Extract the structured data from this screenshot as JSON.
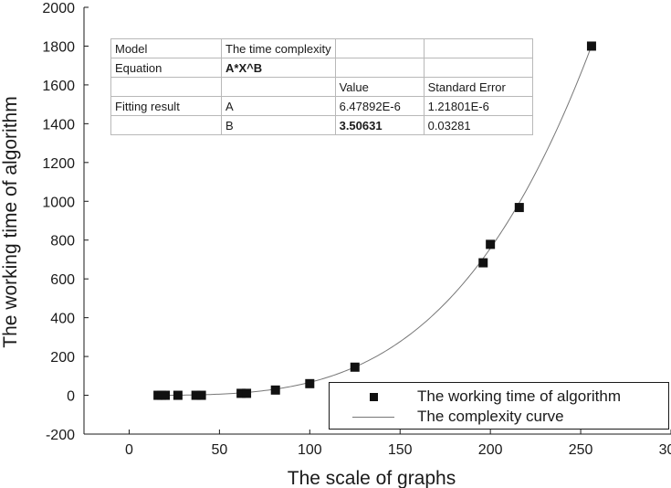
{
  "chart_data": {
    "type": "scatter",
    "xlabel": "The scale of graphs",
    "ylabel": "The working time of algorithm",
    "xlim": [
      -25,
      300
    ],
    "ylim": [
      -200,
      2000
    ],
    "x_ticks": [
      0,
      50,
      100,
      150,
      200,
      250,
      300
    ],
    "y_ticks": [
      -200,
      0,
      200,
      400,
      600,
      800,
      1000,
      1200,
      1400,
      1600,
      1800,
      2000
    ],
    "grid": false,
    "legend_position": "bottom-right",
    "series": [
      {
        "name": "The working time of algorithm",
        "kind": "scatter",
        "marker": "square",
        "color": "#111111",
        "points": [
          {
            "x": 16,
            "y": 0
          },
          {
            "x": 18,
            "y": 0
          },
          {
            "x": 20,
            "y": 0
          },
          {
            "x": 27,
            "y": 0
          },
          {
            "x": 37,
            "y": 0
          },
          {
            "x": 40,
            "y": 0
          },
          {
            "x": 62,
            "y": 10
          },
          {
            "x": 65,
            "y": 10
          },
          {
            "x": 81,
            "y": 27
          },
          {
            "x": 100,
            "y": 60
          },
          {
            "x": 125,
            "y": 145
          },
          {
            "x": 196,
            "y": 683
          },
          {
            "x": 200,
            "y": 778
          },
          {
            "x": 216,
            "y": 968
          },
          {
            "x": 256,
            "y": 1800
          }
        ]
      },
      {
        "name": "The complexity curve",
        "kind": "line",
        "color": "#777777",
        "model": {
          "A": 6.47892e-06,
          "B": 3.50631
        },
        "x_range": [
          16,
          256
        ]
      }
    ]
  },
  "fit_table": {
    "rows": [
      [
        "Model",
        "The time complexity",
        "",
        ""
      ],
      [
        "Equation",
        "A*X^B",
        "",
        ""
      ],
      [
        "",
        "",
        "Value",
        "Standard Error"
      ],
      [
        "Fitting result",
        "A",
        "6.47892E-6",
        "1.21801E-6"
      ],
      [
        "",
        "B",
        "3.50631",
        "0.03281"
      ]
    ]
  }
}
